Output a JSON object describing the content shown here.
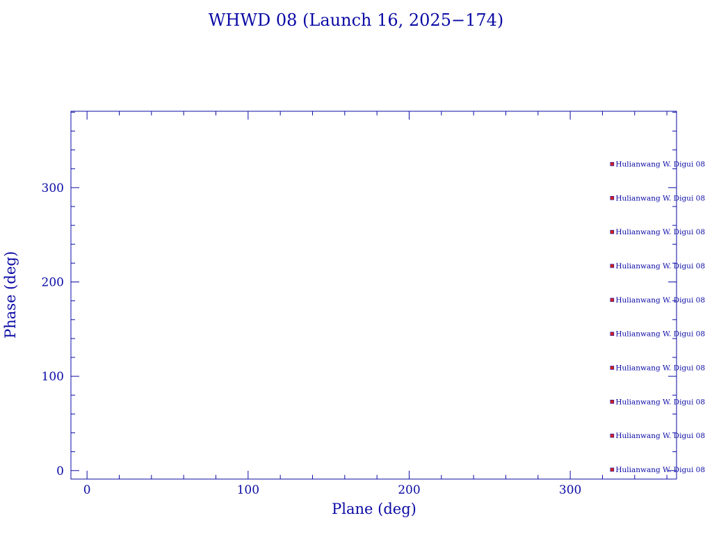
{
  "colors": {
    "axis": "#0a0aa5",
    "text": "#0a0aa5",
    "marker": "#d42020"
  },
  "chart_data": {
    "type": "scatter",
    "title": "WHWD 08 (Launch 16, 2025−174)",
    "xlabel": "Plane (deg)",
    "ylabel": "Phase (deg)",
    "xlim": [
      -10,
      366
    ],
    "ylim": [
      -9,
      381
    ],
    "xticks": [
      0,
      100,
      200,
      300
    ],
    "yticks": [
      0,
      100,
      200,
      300
    ],
    "x_minor_step": 20,
    "y_minor_step": 20,
    "grid": false,
    "series": [
      {
        "points": [
          {
            "x": 326,
            "y": 1,
            "label": "Hulianwang W. Digui 08"
          },
          {
            "x": 326,
            "y": 37,
            "label": "Hulianwang W. Digui 08"
          },
          {
            "x": 326,
            "y": 73,
            "label": "Hulianwang W. Digui 08"
          },
          {
            "x": 326,
            "y": 109,
            "label": "Hulianwang W. Digui 08"
          },
          {
            "x": 326,
            "y": 145,
            "label": "Hulianwang W. Digui 08"
          },
          {
            "x": 326,
            "y": 181,
            "label": "Hulianwang W. Digui 08"
          },
          {
            "x": 326,
            "y": 217,
            "label": "Hulianwang W. Digui 08"
          },
          {
            "x": 326,
            "y": 253,
            "label": "Hulianwang W. Digui 08"
          },
          {
            "x": 326,
            "y": 289,
            "label": "Hulianwang W. Digui 08"
          },
          {
            "x": 326,
            "y": 325,
            "label": "Hulianwang W. Digui 08"
          }
        ]
      }
    ]
  }
}
